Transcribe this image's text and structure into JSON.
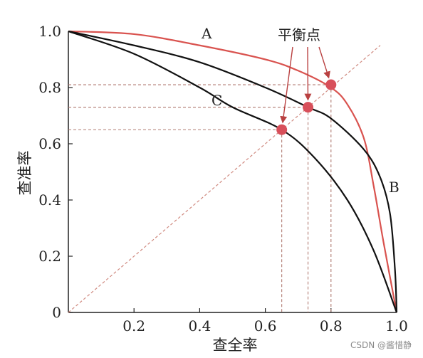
{
  "chart_data": {
    "type": "line",
    "xlabel": "查全率",
    "ylabel": "查准率",
    "xlim": [
      0,
      1.0
    ],
    "ylim": [
      0,
      1.0
    ],
    "x_ticks": [
      {
        "value": 0.2,
        "label": "0.2"
      },
      {
        "value": 0.4,
        "label": "0.4"
      },
      {
        "value": 0.6,
        "label": "0.6"
      },
      {
        "value": 0.8,
        "label": "0.8"
      },
      {
        "value": 1.0,
        "label": "1.0"
      }
    ],
    "y_ticks": [
      {
        "value": 0,
        "label": "0"
      },
      {
        "value": 0.2,
        "label": "0.2"
      },
      {
        "value": 0.4,
        "label": "0.4"
      },
      {
        "value": 0.6,
        "label": "0.6"
      },
      {
        "value": 0.8,
        "label": "0.8"
      },
      {
        "value": 1.0,
        "label": "1.0"
      }
    ],
    "grid": false,
    "series": [
      {
        "name": "A",
        "color": "#d9534f",
        "points": [
          [
            0,
            1.0
          ],
          [
            0.2,
            0.99
          ],
          [
            0.4,
            0.95
          ],
          [
            0.6,
            0.9
          ],
          [
            0.7,
            0.86
          ],
          [
            0.8,
            0.8
          ],
          [
            0.85,
            0.74
          ],
          [
            0.9,
            0.62
          ],
          [
            0.93,
            0.45
          ],
          [
            0.96,
            0.25
          ],
          [
            1.0,
            0
          ]
        ]
      },
      {
        "name": "B",
        "color": "#111111",
        "points": [
          [
            0,
            1.0
          ],
          [
            0.2,
            0.95
          ],
          [
            0.4,
            0.89
          ],
          [
            0.6,
            0.8
          ],
          [
            0.73,
            0.73
          ],
          [
            0.8,
            0.69
          ],
          [
            0.9,
            0.58
          ],
          [
            0.95,
            0.48
          ],
          [
            0.98,
            0.35
          ],
          [
            0.995,
            0.15
          ],
          [
            1.0,
            0
          ]
        ]
      },
      {
        "name": "C",
        "color": "#111111",
        "points": [
          [
            0,
            1.0
          ],
          [
            0.2,
            0.92
          ],
          [
            0.4,
            0.8
          ],
          [
            0.5,
            0.73
          ],
          [
            0.65,
            0.65
          ],
          [
            0.75,
            0.55
          ],
          [
            0.85,
            0.4
          ],
          [
            0.93,
            0.22
          ],
          [
            1.0,
            0
          ]
        ]
      }
    ],
    "break_even_points": [
      {
        "x": 0.65,
        "y": 0.65,
        "color": "#d84f5a"
      },
      {
        "x": 0.73,
        "y": 0.73,
        "color": "#d84f5a"
      },
      {
        "x": 0.8,
        "y": 0.81,
        "color": "#d84f5a"
      }
    ],
    "diagonal_color": "#d08a80",
    "guide_color": "#b07a70",
    "annotation": "平衡点"
  },
  "watermark": "CSDN @酱惜静"
}
